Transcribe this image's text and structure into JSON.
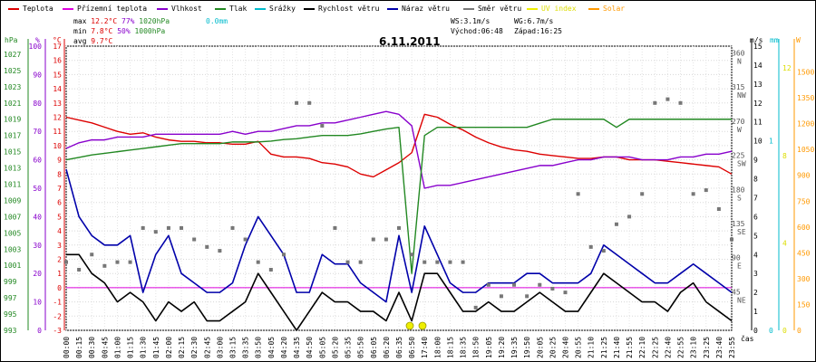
{
  "legend": [
    {
      "label": "Teplota",
      "color": "#dd0000"
    },
    {
      "label": "Přízemní teplota",
      "color": "#dd00dd"
    },
    {
      "label": "Vlhkost",
      "color": "#8800cc"
    },
    {
      "label": "Tlak",
      "color": "#228822"
    },
    {
      "label": "Srážky",
      "color": "#00bbcc"
    },
    {
      "label": "Rychlost větru",
      "color": "#000000"
    },
    {
      "label": "Náraz větru",
      "color": "#0000aa"
    },
    {
      "label": "Směr větru",
      "color": "#777777"
    },
    {
      "label": "UV index",
      "color": "#eeee00"
    },
    {
      "label": "Solar",
      "color": "#ff9900"
    }
  ],
  "stats": {
    "max_label": "max",
    "max_temp": "12.2°C",
    "max_hum": "77%",
    "max_press": "1020hPa",
    "rain": "0.0mm",
    "min_label": "min",
    "min_temp": "7.8°C",
    "min_hum": "50%",
    "min_press": "1000hPa",
    "avg_label": "avg",
    "avg_temp": "9.7°C",
    "ws": "WS:3.1m/s",
    "wg": "WG:6.7m/s",
    "sunrise": "Východ:06:48",
    "sunset": "Západ:16:25"
  },
  "date": "6.11.2011",
  "axis_units": {
    "hpa": "hPa",
    "pct": "%",
    "degc": "°C",
    "ms": "m/s",
    "mm": "mm",
    "w": "W",
    "time": "čas"
  },
  "chart_data": {
    "type": "line",
    "title": "6.11.2011",
    "x": [
      "00:00",
      "00:15",
      "00:30",
      "00:45",
      "01:00",
      "01:15",
      "01:30",
      "01:45",
      "02:00",
      "02:15",
      "02:30",
      "02:45",
      "03:00",
      "03:15",
      "03:35",
      "03:50",
      "04:05",
      "04:20",
      "04:35",
      "04:50",
      "05:05",
      "05:20",
      "05:35",
      "05:50",
      "06:05",
      "06:20",
      "06:35",
      "06:50",
      "17:40",
      "18:00",
      "18:15",
      "18:35",
      "18:50",
      "19:05",
      "19:20",
      "19:35",
      "19:50",
      "20:05",
      "20:25",
      "20:40",
      "20:55",
      "21:10",
      "21:25",
      "21:40",
      "21:55",
      "22:10",
      "22:25",
      "22:40",
      "22:55",
      "23:10",
      "23:25",
      "23:40",
      "23:55"
    ],
    "ticks": {
      "hpa": [
        "993",
        "995",
        "997",
        "999",
        "1001",
        "1003",
        "1005",
        "1007",
        "1009",
        "1011",
        "1013",
        "1015",
        "1017",
        "1019",
        "1021",
        "1023",
        "1025",
        "1027"
      ],
      "pct": [
        "0",
        "10",
        "20",
        "30",
        "40",
        "50",
        "60",
        "70",
        "80",
        "90",
        "100"
      ],
      "degc": [
        "-3",
        "-2",
        "-1",
        "0",
        "1",
        "2",
        "3",
        "4",
        "5",
        "6",
        "7",
        "8",
        "9",
        "10",
        "11",
        "12",
        "13",
        "14",
        "15",
        "16",
        "17"
      ],
      "ms": [
        "0",
        "1",
        "2",
        "3",
        "4",
        "5",
        "6",
        "7",
        "8",
        "9",
        "10",
        "11",
        "12",
        "13",
        "14",
        "15"
      ],
      "mm": [
        "0",
        "1"
      ],
      "uv": [
        "0",
        "4",
        "8",
        "12"
      ],
      "w": [
        "0",
        "150",
        "300",
        "450",
        "600",
        "750",
        "900",
        "1050",
        "1200",
        "1350",
        "1500"
      ],
      "dir": [
        {
          "deg": 360,
          "label": "N"
        },
        {
          "deg": 315,
          "label": "NW"
        },
        {
          "deg": 270,
          "label": "W"
        },
        {
          "deg": 225,
          "label": "SW"
        },
        {
          "deg": 180,
          "label": "S"
        },
        {
          "deg": 135,
          "label": "SE"
        },
        {
          "deg": 90,
          "label": "E"
        },
        {
          "deg": 45,
          "label": "NE"
        }
      ]
    },
    "ranges": {
      "temp": [
        -3,
        17
      ],
      "hum": [
        0,
        100
      ],
      "press": [
        993,
        1028
      ],
      "wind": [
        0,
        15
      ],
      "dir": [
        0,
        375
      ],
      "solar": [
        0,
        1650
      ],
      "uv": [
        0,
        13
      ]
    },
    "series": [
      {
        "key": "temp",
        "name": "Teplota",
        "color": "#dd0000",
        "axis": "temp",
        "values": [
          12,
          11.8,
          11.6,
          11.3,
          11,
          10.8,
          10.9,
          10.6,
          10.4,
          10.3,
          10.3,
          10.2,
          10.2,
          10.1,
          10.1,
          10.3,
          9.4,
          9.2,
          9.2,
          9.1,
          8.8,
          8.7,
          8.5,
          8,
          7.8,
          8.3,
          8.8,
          9.5,
          12.2,
          12,
          11.5,
          11.1,
          10.6,
          10.2,
          9.9,
          9.7,
          9.6,
          9.4,
          9.3,
          9.2,
          9.1,
          9.1,
          9.2,
          9.2,
          9,
          9,
          9,
          8.9,
          8.8,
          8.7,
          8.6,
          8.5,
          8
        ]
      },
      {
        "key": "ground",
        "name": "Přízemní teplota",
        "color": "#dd00dd",
        "axis": "temp",
        "values": [
          0,
          0,
          0,
          0,
          0,
          0,
          0,
          0,
          0,
          0,
          0,
          0,
          0,
          0,
          0,
          0,
          0,
          0,
          0,
          0,
          0,
          0,
          0,
          0,
          0,
          0,
          0,
          0,
          0,
          0,
          0,
          0,
          0,
          0,
          0,
          0,
          0,
          0,
          0,
          0,
          0,
          0,
          0,
          0,
          0,
          0,
          0,
          0,
          0,
          0,
          0,
          0,
          0
        ]
      },
      {
        "key": "hum",
        "name": "Vlhkost",
        "color": "#8800cc",
        "axis": "hum",
        "values": [
          64,
          66,
          67,
          67,
          68,
          68,
          68,
          69,
          69,
          69,
          69,
          69,
          69,
          70,
          69,
          70,
          70,
          71,
          72,
          72,
          73,
          73,
          74,
          75,
          76,
          77,
          76,
          72,
          50,
          51,
          51,
          52,
          53,
          54,
          55,
          56,
          57,
          58,
          58,
          59,
          60,
          60,
          61,
          61,
          61,
          60,
          60,
          60,
          61,
          61,
          62,
          62,
          63
        ]
      },
      {
        "key": "press",
        "name": "Tlak",
        "color": "#228822",
        "axis": "press",
        "values": [
          1014,
          1014.3,
          1014.6,
          1014.8,
          1015,
          1015.2,
          1015.4,
          1015.6,
          1015.8,
          1016,
          1016,
          1016,
          1016,
          1016.2,
          1016.2,
          1016.2,
          1016.3,
          1016.5,
          1016.6,
          1016.8,
          1017,
          1017,
          1017,
          1017.2,
          1017.5,
          1017.8,
          1018,
          1000,
          1017,
          1018,
          1018,
          1018,
          1018,
          1018,
          1018,
          1018,
          1018,
          1018.5,
          1019,
          1019,
          1019,
          1019,
          1019,
          1018,
          1019,
          1019,
          1019,
          1019,
          1019,
          1019,
          1019,
          1019,
          1019
        ]
      },
      {
        "key": "rain",
        "name": "Srážky",
        "color": "#00bbcc",
        "axis": "wind",
        "values": [
          0,
          0,
          0,
          0,
          0,
          0,
          0,
          0,
          0,
          0,
          0,
          0,
          0,
          0,
          0,
          0,
          0,
          0,
          0,
          0,
          0,
          0,
          0,
          0,
          0,
          0,
          0,
          0,
          0,
          0,
          0,
          0,
          0,
          0,
          0,
          0,
          0,
          0,
          0,
          0,
          0,
          0,
          0,
          0,
          0,
          0,
          0,
          0,
          0,
          0,
          0,
          0,
          0
        ]
      },
      {
        "key": "wind",
        "name": "Rychlost větru",
        "color": "#000000",
        "axis": "wind",
        "values": [
          4,
          4,
          3,
          2.5,
          1.5,
          2,
          1.5,
          0.5,
          1.5,
          1,
          1.5,
          0.5,
          0.5,
          1,
          1.5,
          3,
          2,
          1,
          0,
          1,
          2,
          1.5,
          1.5,
          1,
          1,
          0.5,
          2,
          0.5,
          3,
          3,
          2,
          1,
          1,
          1.5,
          1,
          1,
          1.5,
          2,
          1.5,
          1,
          1,
          2,
          3,
          2.5,
          2,
          1.5,
          1.5,
          1,
          2,
          2.5,
          1.5,
          1,
          0.5
        ]
      },
      {
        "key": "gust",
        "name": "Náraz větru",
        "color": "#0000aa",
        "axis": "wind",
        "values": [
          8.5,
          6,
          5,
          4.5,
          4.5,
          5,
          2,
          4,
          5,
          3,
          2.5,
          2,
          2,
          2.5,
          4.5,
          6,
          5,
          4,
          2,
          2,
          4,
          3.5,
          3.5,
          2.5,
          2,
          1.5,
          5,
          2,
          5.5,
          4,
          2.5,
          2,
          2,
          2.5,
          2.5,
          2.5,
          3,
          3,
          2.5,
          2.5,
          2.5,
          3,
          4.5,
          4,
          3.5,
          3,
          2.5,
          2.5,
          3,
          3.5,
          3,
          2.5,
          2
        ]
      },
      {
        "key": "dir",
        "name": "Směr větru",
        "color": "#777777",
        "axis": "dir",
        "values": [
          90,
          80,
          100,
          85,
          90,
          90,
          135,
          130,
          135,
          135,
          120,
          110,
          105,
          135,
          120,
          90,
          80,
          100,
          300,
          300,
          270,
          135,
          90,
          90,
          120,
          120,
          135,
          100,
          90,
          90,
          90,
          90,
          30,
          60,
          45,
          60,
          45,
          60,
          55,
          50,
          180,
          110,
          105,
          140,
          150,
          180,
          300,
          305,
          300,
          180,
          185,
          160,
          120
        ]
      },
      {
        "key": "uv",
        "name": "UV index",
        "color": "#eeee00",
        "axis": "uv",
        "values": [
          0,
          0,
          0,
          0,
          0,
          0,
          0,
          0,
          0,
          0,
          0,
          0,
          0,
          0,
          0,
          0,
          0,
          0,
          0,
          0,
          0,
          0,
          0,
          0,
          0,
          0,
          0,
          0,
          0,
          0,
          0,
          0,
          0,
          0,
          0,
          0,
          0,
          0,
          0,
          0,
          0,
          0,
          0,
          0,
          0,
          0,
          0,
          0,
          0,
          0,
          0,
          0,
          0
        ]
      },
      {
        "key": "solar",
        "name": "Solar",
        "color": "#ff9900",
        "axis": "solar",
        "values": [
          0,
          0,
          0,
          0,
          0,
          0,
          0,
          0,
          0,
          0,
          0,
          0,
          0,
          0,
          0,
          0,
          0,
          0,
          0,
          0,
          0,
          0,
          0,
          0,
          0,
          0,
          0,
          0,
          0,
          0,
          0,
          0,
          0,
          0,
          0,
          0,
          0,
          0,
          0,
          0,
          0,
          0,
          0,
          0,
          0,
          0,
          0,
          0,
          0,
          0,
          0,
          0,
          0
        ]
      }
    ],
    "grid": true
  }
}
